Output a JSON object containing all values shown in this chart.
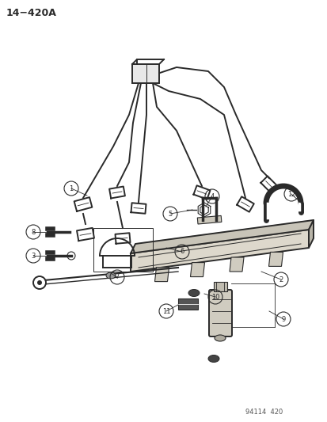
{
  "title": "14−420A",
  "footer": "94114  420",
  "bg_color": "#ffffff",
  "lc": "#2a2a2a",
  "fig_w": 4.14,
  "fig_h": 5.33,
  "dpi": 100
}
